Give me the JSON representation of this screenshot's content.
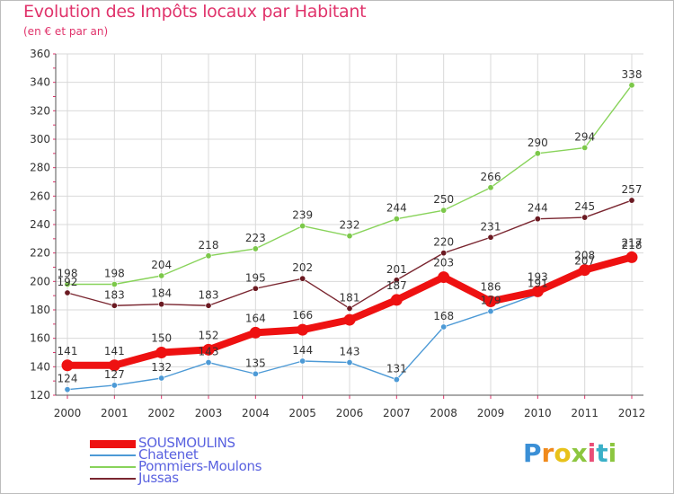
{
  "title": "Evolution des Impôts locaux par Habitant",
  "subtitle": "(en € et par an)",
  "logo": {
    "text": "Proxiti",
    "letters": [
      "P",
      "r",
      "o",
      "x",
      "i",
      "t",
      "i"
    ],
    "colors": [
      "#3a8fd6",
      "#f08a1c",
      "#e8c21a",
      "#8cc63f",
      "#e94e77",
      "#3ab0c8",
      "#8cc63f"
    ]
  },
  "chart_data": {
    "type": "line",
    "x": [
      2000,
      2001,
      2002,
      2003,
      2004,
      2005,
      2006,
      2007,
      2008,
      2009,
      2010,
      2011,
      2012
    ],
    "ylim": [
      120,
      360
    ],
    "yticks": [
      120,
      140,
      160,
      180,
      200,
      220,
      240,
      260,
      280,
      300,
      320,
      340,
      360
    ],
    "grid": true,
    "legend_position": "bottom-left",
    "series": [
      {
        "name": "SOUSMOULINS",
        "color": "#ee1111",
        "marker": "#ee1111",
        "values": [
          141,
          141,
          150,
          152,
          164,
          166,
          173,
          187,
          203,
          186,
          193,
          208,
          217
        ],
        "labels": [
          "141",
          "141",
          "150",
          "152",
          "164",
          "166",
          "",
          "187",
          "203",
          "186",
          "193",
          "208",
          "217"
        ]
      },
      {
        "name": "Chatenet",
        "color": "#4d9ad6",
        "marker": "#4d9ad6",
        "values": [
          124,
          127,
          132,
          143,
          135,
          144,
          143,
          131,
          168,
          179,
          191,
          207,
          218
        ],
        "labels": [
          "124",
          "127",
          "132",
          "143",
          "135",
          "144",
          "143",
          "131",
          "168",
          "179",
          "191",
          "207",
          "218"
        ]
      },
      {
        "name": "Pommiers-Moulons",
        "color": "#88d35a",
        "marker": "#7cc84a",
        "values": [
          198,
          198,
          204,
          218,
          223,
          239,
          232,
          244,
          250,
          266,
          290,
          294,
          338
        ],
        "labels": [
          "198",
          "198",
          "204",
          "218",
          "223",
          "239",
          "232",
          "244",
          "250",
          "266",
          "290",
          "294",
          "338"
        ]
      },
      {
        "name": "Jussas",
        "color": "#7a2630",
        "marker": "#6b1a22",
        "values": [
          192,
          183,
          184,
          183,
          195,
          202,
          181,
          201,
          220,
          231,
          244,
          245,
          257
        ],
        "labels": [
          "192",
          "183",
          "184",
          "183",
          "195",
          "202",
          "181",
          "201",
          "220",
          "231",
          "244",
          "245",
          "257"
        ]
      }
    ]
  }
}
